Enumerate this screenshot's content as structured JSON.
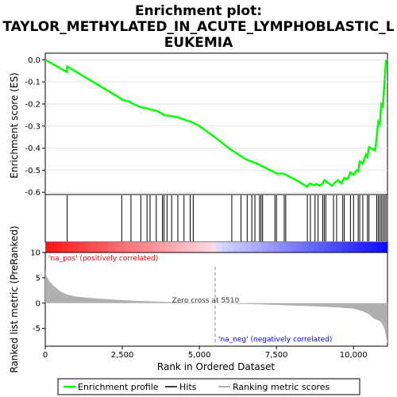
{
  "chart_data": {
    "type": "line",
    "title_lines": [
      "Enrichment plot:",
      "TAYLOR_METHYLATED_IN_ACUTE_LYMPHOBLASTIC_L",
      "EUKEMIA"
    ],
    "x_range": [
      0,
      11100
    ],
    "x_ticks": [
      0,
      2500,
      5000,
      7500,
      10000
    ],
    "x_tick_labels": [
      "0",
      "2,500",
      "5,000",
      "7,500",
      "10,000"
    ],
    "xlabel": "Rank in Ordered Dataset",
    "es_panel": {
      "ylabel": "Enrichment score (ES)",
      "ylim": [
        -0.61,
        0.03
      ],
      "y_ticks": [
        0.0,
        -0.1,
        -0.2,
        -0.3,
        -0.4,
        -0.5,
        -0.6
      ],
      "y_tick_labels": [
        "0.0",
        "-0.1",
        "-0.2",
        "-0.3",
        "-0.4",
        "-0.5",
        "-0.6"
      ],
      "series": [
        {
          "name": "Enrichment profile",
          "color": "#00ff00",
          "x": [
            0,
            700,
            710,
            2450,
            2480,
            2750,
            2780,
            3100,
            3300,
            3400,
            3600,
            3800,
            3850,
            3950,
            4100,
            4300,
            4500,
            4700,
            4800,
            5000,
            5500,
            6000,
            6500,
            6950,
            7000,
            7450,
            7500,
            7700,
            7800,
            8200,
            8500,
            8550,
            8600,
            8700,
            8800,
            8900,
            9000,
            9050,
            9100,
            9300,
            9400,
            9500,
            9600,
            9700,
            9800,
            9900,
            10000,
            10100,
            10150,
            10200,
            10300,
            10400,
            10450,
            10500,
            10700,
            10750,
            10800,
            10850,
            10900,
            10950,
            11000,
            11050
          ],
          "y": [
            0.0,
            -0.055,
            -0.03,
            -0.175,
            -0.18,
            -0.19,
            -0.195,
            -0.215,
            -0.22,
            -0.225,
            -0.23,
            -0.245,
            -0.25,
            -0.252,
            -0.255,
            -0.26,
            -0.27,
            -0.28,
            -0.285,
            -0.3,
            -0.35,
            -0.405,
            -0.45,
            -0.475,
            -0.48,
            -0.51,
            -0.515,
            -0.515,
            -0.52,
            -0.55,
            -0.575,
            -0.565,
            -0.56,
            -0.568,
            -0.563,
            -0.57,
            -0.56,
            -0.545,
            -0.55,
            -0.57,
            -0.555,
            -0.545,
            -0.56,
            -0.535,
            -0.54,
            -0.51,
            -0.52,
            -0.5,
            -0.505,
            -0.46,
            -0.47,
            -0.43,
            -0.44,
            -0.395,
            -0.41,
            -0.35,
            -0.28,
            -0.29,
            -0.2,
            -0.21,
            -0.11,
            0.0
          ]
        }
      ]
    },
    "hits": {
      "name": "Hits",
      "positions": [
        710,
        2480,
        2780,
        3100,
        3300,
        3400,
        3600,
        3800,
        3850,
        3950,
        4100,
        4300,
        4500,
        4700,
        4800,
        6050,
        6350,
        6550,
        6700,
        6800,
        6950,
        7000,
        7050,
        7450,
        7500,
        7750,
        7800,
        8500,
        8600,
        8750,
        8850,
        9000,
        9050,
        9100,
        9350,
        9450,
        9650,
        9700,
        9900,
        10000,
        10150,
        10200,
        10300,
        10450,
        10500,
        10750,
        10800,
        10850,
        10900,
        10950,
        11000,
        11050
      ]
    },
    "ranked_panel": {
      "name": "Ranking metric scores",
      "ylabel": "Ranked list metric (PreRanked)",
      "ylim": [
        -8.5,
        10
      ],
      "y_ticks": [
        10,
        5,
        0,
        -5
      ],
      "y_tick_labels": [
        "10",
        "5",
        "0",
        "-5"
      ],
      "x": [
        0,
        50,
        150,
        300,
        500,
        700,
        1000,
        1500,
        2000,
        2500,
        3000,
        3500,
        4000,
        4500,
        5000,
        5510,
        6000,
        7000,
        8000,
        9000,
        9500,
        10000,
        10300,
        10500,
        10600,
        10700,
        10800,
        10900,
        11000,
        11050,
        11100
      ],
      "y": [
        6.3,
        5.2,
        4.2,
        3.3,
        2.3,
        1.7,
        1.3,
        1.0,
        0.8,
        0.6,
        0.45,
        0.35,
        0.25,
        0.15,
        0.08,
        0.0,
        -0.1,
        -0.25,
        -0.45,
        -0.7,
        -0.85,
        -1.1,
        -1.6,
        -2.2,
        -2.8,
        -3.2,
        -3.4,
        -3.8,
        -5.0,
        -6.5,
        -7.9
      ],
      "color": "#b0b0b0",
      "zero_cross_label": "Zero cross at 5510",
      "zero_cross_x": 5510,
      "pos_label": "'na_pos' (positively correlated)",
      "neg_label": "'na_neg' (negatively correlated)",
      "pos_color": "#ff0000",
      "neg_color": "#0000ff"
    },
    "legend": [
      {
        "label": "Enrichment profile",
        "color": "#00ff00"
      },
      {
        "label": "Hits",
        "color": "#000000"
      },
      {
        "label": "Ranking metric scores",
        "color": "#b0b0b0"
      }
    ],
    "legend_placement": "bottom"
  }
}
